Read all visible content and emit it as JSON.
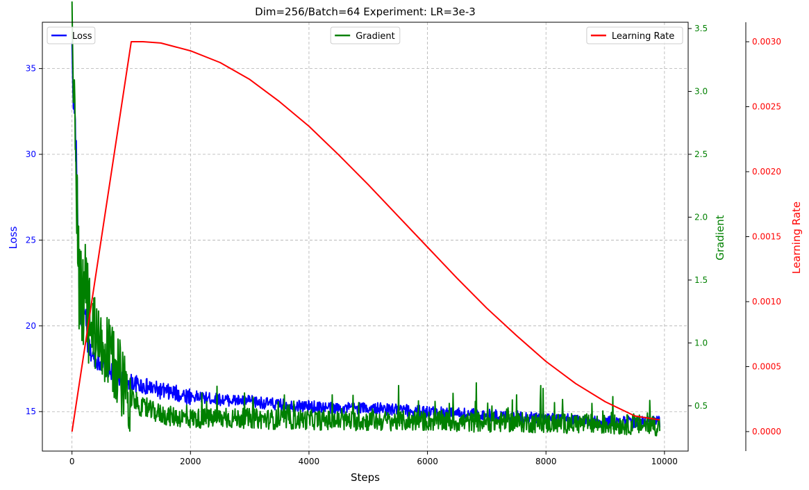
{
  "chart_data": {
    "type": "line",
    "title": "Dim=256/Batch=64 Experiment: LR=3e-3",
    "xlabel": "Steps",
    "xlim": [
      -500,
      10400
    ],
    "xticks": [
      0,
      2000,
      4000,
      6000,
      8000,
      10000
    ],
    "grid": true,
    "axes": [
      {
        "id": "loss",
        "label": "Loss",
        "side": "left",
        "color": "#0000ff",
        "ylim": [
          12.7,
          37.7
        ],
        "ticks": [
          15,
          20,
          25,
          30,
          35
        ],
        "tick_labels": [
          "15",
          "20",
          "25",
          "30",
          "35"
        ]
      },
      {
        "id": "gradient",
        "label": "Gradient",
        "side": "right",
        "color": "#008000",
        "ylim": [
          0.14,
          3.55
        ],
        "ticks": [
          0.5,
          1.0,
          1.5,
          2.0,
          2.5,
          3.0,
          3.5
        ],
        "tick_labels": [
          "0.5",
          "1.0",
          "1.5",
          "2.0",
          "2.5",
          "3.0",
          "3.5"
        ]
      },
      {
        "id": "lr",
        "label": "Learning Rate",
        "side": "right-outer",
        "color": "#ff0000",
        "ylim": [
          -0.00015,
          0.00315
        ],
        "ticks": [
          0,
          0.0005,
          0.001,
          0.0015,
          0.002,
          0.0025,
          0.003
        ],
        "tick_labels": [
          "0.0000",
          "0.0005",
          "0.0010",
          "0.0015",
          "0.0020",
          "0.0025",
          "0.0030"
        ]
      }
    ],
    "series": [
      {
        "name": "Loss",
        "axis": "loss",
        "color": "#0000ff",
        "legend": "top-left",
        "x": [
          0,
          20,
          50,
          80,
          110,
          150,
          200,
          300,
          400,
          500,
          600,
          800,
          1000,
          1200,
          1500,
          2000,
          2500,
          3000,
          3500,
          4000,
          4500,
          5000,
          5500,
          6000,
          6500,
          7000,
          7500,
          8000,
          8500,
          9000,
          9500,
          9920
        ],
        "y": [
          36.0,
          34.0,
          32.0,
          29.0,
          23.5,
          21.0,
          20.5,
          18.5,
          18.0,
          17.8,
          17.5,
          17.0,
          16.7,
          16.5,
          16.2,
          15.9,
          15.7,
          15.6,
          15.4,
          15.3,
          15.2,
          15.2,
          15.1,
          15.0,
          14.9,
          14.8,
          14.7,
          14.6,
          14.5,
          14.4,
          14.4,
          14.4
        ]
      },
      {
        "name": "Gradient",
        "axis": "gradient",
        "color": "#008000",
        "legend": "top-center",
        "x": [
          0,
          10,
          25,
          40,
          60,
          80,
          100,
          120,
          150,
          180,
          220,
          260,
          300,
          350,
          400,
          450,
          500,
          600,
          700,
          800,
          900,
          1000,
          1100,
          1200,
          1400,
          1600,
          1800,
          2000,
          2500,
          3000,
          3500,
          4000,
          4500,
          5000,
          5500,
          6000,
          6500,
          7000,
          7500,
          8000,
          8500,
          9000,
          9500,
          9920
        ],
        "y": [
          3.35,
          3.1,
          3.4,
          2.7,
          2.4,
          2.3,
          1.9,
          1.5,
          1.3,
          1.2,
          1.3,
          1.35,
          1.15,
          1.1,
          1.05,
          1.0,
          0.95,
          0.9,
          0.85,
          0.75,
          0.65,
          0.58,
          0.52,
          0.48,
          0.45,
          0.42,
          0.41,
          0.4,
          0.4,
          0.4,
          0.39,
          0.39,
          0.38,
          0.38,
          0.38,
          0.38,
          0.37,
          0.37,
          0.37,
          0.36,
          0.36,
          0.35,
          0.35,
          0.34
        ]
      },
      {
        "name": "Learning Rate",
        "axis": "lr",
        "color": "#ff0000",
        "legend": "top-right",
        "x": [
          0,
          1000,
          1200,
          1500,
          2000,
          2500,
          3000,
          3500,
          4000,
          4500,
          5000,
          5500,
          6000,
          6500,
          7000,
          7500,
          8000,
          8500,
          9000,
          9500,
          9920
        ],
        "y": [
          0.0,
          0.003,
          0.003,
          0.00299,
          0.00293,
          0.00284,
          0.00271,
          0.00254,
          0.00235,
          0.00213,
          0.0019,
          0.00166,
          0.00142,
          0.00118,
          0.00095,
          0.00074,
          0.00054,
          0.00037,
          0.00023,
          0.00012,
          9e-05
        ]
      }
    ]
  }
}
